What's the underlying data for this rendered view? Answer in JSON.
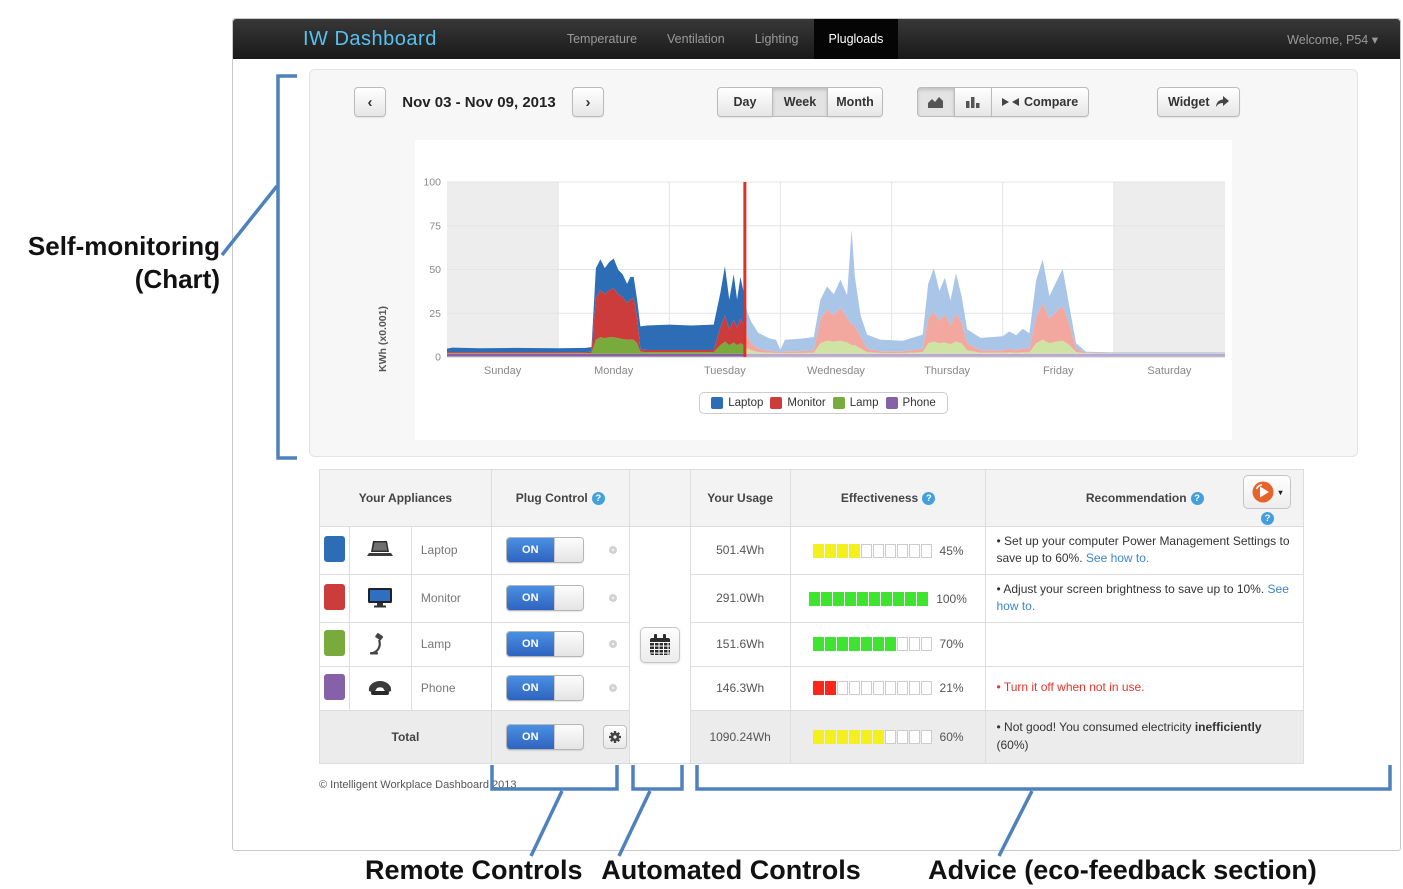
{
  "annotations": {
    "self_monitoring_line1": "Self-monitoring",
    "self_monitoring_line2": "(Chart)",
    "remote_controls": "Remote Controls",
    "automated_controls": "Automated Controls",
    "advice": "Advice (eco-feedback section)",
    "accent_color": "#4f81bd"
  },
  "navbar": {
    "brand": "IW Dashboard",
    "items": [
      {
        "label": "Temperature",
        "active": false
      },
      {
        "label": "Ventilation",
        "active": false
      },
      {
        "label": "Lighting",
        "active": false
      },
      {
        "label": "Plugloads",
        "active": true
      }
    ],
    "user": "Welcome, P54"
  },
  "icons": {
    "question": "?",
    "caret": "▾",
    "prev": "‹",
    "next": "›"
  },
  "controls": {
    "date_range": "Nov 03 - Nov 09, 2013",
    "views": {
      "day": "Day",
      "week": "Week",
      "month": "Month",
      "active": "Week"
    },
    "compare_label": "Compare",
    "widget_label": "Widget"
  },
  "chart_data": {
    "type": "area",
    "stacked": true,
    "title": "",
    "ylabel": "KWh (x0.001)",
    "yticks": [
      0,
      25,
      50,
      75,
      100
    ],
    "ylim": [
      0,
      100
    ],
    "days": [
      "Sunday",
      "Monday",
      "Tuesday",
      "Wednesday",
      "Thursday",
      "Friday",
      "Saturday"
    ],
    "weekend_shaded_days": [
      0,
      6
    ],
    "now_marker_x": 2.68,
    "now_marker_color": "#e23028",
    "x": [
      0,
      0.05,
      0.3,
      0.6,
      1,
      1.25,
      1.3,
      1.34,
      1.38,
      1.42,
      1.46,
      1.5,
      1.54,
      1.58,
      1.62,
      1.65,
      1.68,
      1.71,
      1.74,
      1.8,
      2,
      2.2,
      2.4,
      2.46,
      2.5,
      2.54,
      2.58,
      2.61,
      2.64,
      2.67,
      2.68,
      2.7,
      2.74,
      2.8,
      2.9,
      2.96,
      3,
      3.04,
      3.15,
      3.3,
      3.36,
      3.42,
      3.48,
      3.54,
      3.6,
      3.64,
      3.67,
      3.72,
      3.78,
      3.9,
      4.1,
      4.28,
      4.33,
      4.38,
      4.43,
      4.48,
      4.53,
      4.58,
      4.63,
      4.68,
      4.8,
      5,
      5.06,
      5.12,
      5.18,
      5.24,
      5.3,
      5.36,
      5.42,
      5.48,
      5.54,
      5.6,
      5.66,
      5.75,
      6,
      6.5,
      7
    ],
    "series": [
      {
        "name": "Phone",
        "color": "#8661a8",
        "faded_color": "#b9a8d1",
        "values": [
          1.8,
          1.8,
          1.8,
          1.8,
          1.8,
          1.8,
          1.8,
          1.8,
          1.8,
          1.8,
          1.8,
          1.8,
          1.8,
          1.8,
          1.8,
          1.8,
          1.8,
          1.8,
          1.8,
          1.8,
          1.8,
          1.8,
          1.8,
          1.8,
          1.8,
          1.8,
          1.8,
          1.8,
          1.8,
          1.8,
          1.8,
          1.8,
          1.8,
          1.8,
          1.8,
          1.8,
          1.8,
          1.8,
          1.8,
          1.8,
          1.8,
          1.8,
          1.8,
          1.8,
          1.8,
          1.8,
          1.8,
          1.8,
          1.8,
          1.8,
          1.8,
          1.8,
          1.8,
          1.8,
          1.8,
          1.8,
          1.8,
          1.8,
          1.8,
          1.8,
          1.8,
          1.8,
          1.8,
          1.8,
          1.8,
          1.8,
          1.8,
          1.8,
          1.8,
          1.8,
          1.8,
          1.8,
          1.8,
          1.8,
          1.8,
          1.8,
          1.8
        ]
      },
      {
        "name": "Lamp",
        "color": "#78aa3c",
        "faded_color": "#cfe3a5",
        "values": [
          0.4,
          0.4,
          0.4,
          0.4,
          0.4,
          0.4,
          0.5,
          8,
          9.5,
          9,
          9.5,
          9.5,
          9,
          8.5,
          8,
          8,
          8,
          6,
          1.2,
          1,
          1,
          1,
          1,
          5,
          7,
          5,
          6.5,
          5,
          6,
          5,
          4.5,
          3,
          2,
          1,
          0.6,
          0.5,
          0.3,
          0.5,
          0.5,
          0.6,
          6,
          7.5,
          7,
          7.5,
          6.5,
          5,
          5,
          3,
          1,
          0.5,
          0.5,
          1,
          6,
          7,
          6,
          6.5,
          5.5,
          7,
          6,
          2,
          0.6,
          0.6,
          0.8,
          0.6,
          0.8,
          0.8,
          6,
          8,
          6,
          7,
          7.5,
          5,
          1,
          0.3,
          0.2,
          0.2,
          0.2
        ]
      },
      {
        "name": "Monitor",
        "color": "#cc3c3a",
        "faded_color": "#f2a89f",
        "values": [
          0.6,
          0.6,
          0.6,
          0.6,
          0.6,
          0.6,
          0.8,
          24,
          27,
          25,
          27,
          28,
          25,
          24,
          21,
          23,
          24,
          15,
          1.5,
          1.2,
          1.2,
          1.2,
          1.2,
          10,
          15,
          9,
          13,
          10,
          14,
          12,
          11,
          7,
          4,
          2,
          1.2,
          1,
          0.4,
          1,
          1,
          1.5,
          14,
          18,
          15,
          19,
          14,
          12,
          11,
          7,
          2,
          1,
          1,
          2,
          14,
          17,
          13,
          16,
          11,
          16,
          12,
          4,
          1.5,
          1.5,
          2,
          1.5,
          2.5,
          2,
          15,
          21,
          14,
          17,
          20,
          12,
          2,
          0.3,
          0.2,
          0.2,
          0.2
        ]
      },
      {
        "name": "Laptop",
        "color": "#2d6db5",
        "faded_color": "#a9c5e8",
        "values": [
          2,
          2.6,
          2.2,
          2.4,
          2.2,
          2.4,
          2.6,
          17,
          17.5,
          15,
          16,
          17,
          14,
          13,
          11,
          13,
          12,
          10,
          13,
          14,
          14.5,
          14,
          14.5,
          20,
          28,
          17,
          26,
          16,
          24,
          18,
          16,
          14,
          12,
          9,
          7,
          6.5,
          1.5,
          6.5,
          7,
          7.5,
          11,
          13,
          12,
          16,
          13,
          54,
          28,
          12,
          8,
          6.5,
          6,
          8,
          20,
          25,
          17,
          21,
          14,
          23,
          15,
          8,
          7,
          8,
          10,
          8.5,
          11,
          9,
          21,
          25,
          13,
          17,
          21,
          10,
          3,
          0.6,
          0.4,
          0.4,
          0.4
        ]
      }
    ]
  },
  "legend": [
    {
      "label": "Laptop",
      "color": "#2d6db5"
    },
    {
      "label": "Monitor",
      "color": "#cc3c3a"
    },
    {
      "label": "Lamp",
      "color": "#78aa3c"
    },
    {
      "label": "Phone",
      "color": "#8661a8"
    }
  ],
  "table": {
    "headers": {
      "appliances": "Your Appliances",
      "plug_control": "Plug Control",
      "usage": "Your Usage",
      "effectiveness": "Effectiveness",
      "recommendation": "Recommendation"
    },
    "on_label": "ON",
    "rows": [
      {
        "color": "#2d6db5",
        "name": "Laptop",
        "usage": "501.4Wh",
        "effectiveness": "45%",
        "bar": {
          "filled": 4,
          "total": 10,
          "color": "#f4f01e"
        },
        "rec_bullet": "•",
        "rec_text": "Set up your computer Power Management Settings to save up to 60%.",
        "rec_link": "See how to."
      },
      {
        "color": "#cc3c3a",
        "name": "Monitor",
        "usage": "291.0Wh",
        "effectiveness": "100%",
        "bar": {
          "filled": 10,
          "total": 10,
          "color": "#3fe431"
        },
        "rec_bullet": "•",
        "rec_text": "Adjust your screen brightness to save up to 10%.",
        "rec_link": "See how to."
      },
      {
        "color": "#78aa3c",
        "name": "Lamp",
        "usage": "151.6Wh",
        "effectiveness": "70%",
        "bar": {
          "filled": 7,
          "total": 10,
          "color": "#3fe431"
        },
        "rec_bullet": "",
        "rec_text": "",
        "rec_link": ""
      },
      {
        "color": "#8661a8",
        "name": "Phone",
        "usage": "146.3Wh",
        "effectiveness": "21%",
        "bar": {
          "filled": 2,
          "total": 10,
          "color": "#ff2619"
        },
        "rec_bullet": "•",
        "rec_text": "Turn it off when not in use.",
        "rec_link": ""
      }
    ],
    "total": {
      "label": "Total",
      "usage": "1090.24Wh",
      "effectiveness": "60%",
      "bar": {
        "filled": 6,
        "total": 10,
        "color": "#f4f01e"
      },
      "rec_bullet": "•",
      "rec_prefix": "Not good! You consumed electricity ",
      "rec_bold": "inefficiently",
      "rec_suffix": " (60%)"
    },
    "footer": "© Intelligent Workplace Dashboard 2013"
  }
}
